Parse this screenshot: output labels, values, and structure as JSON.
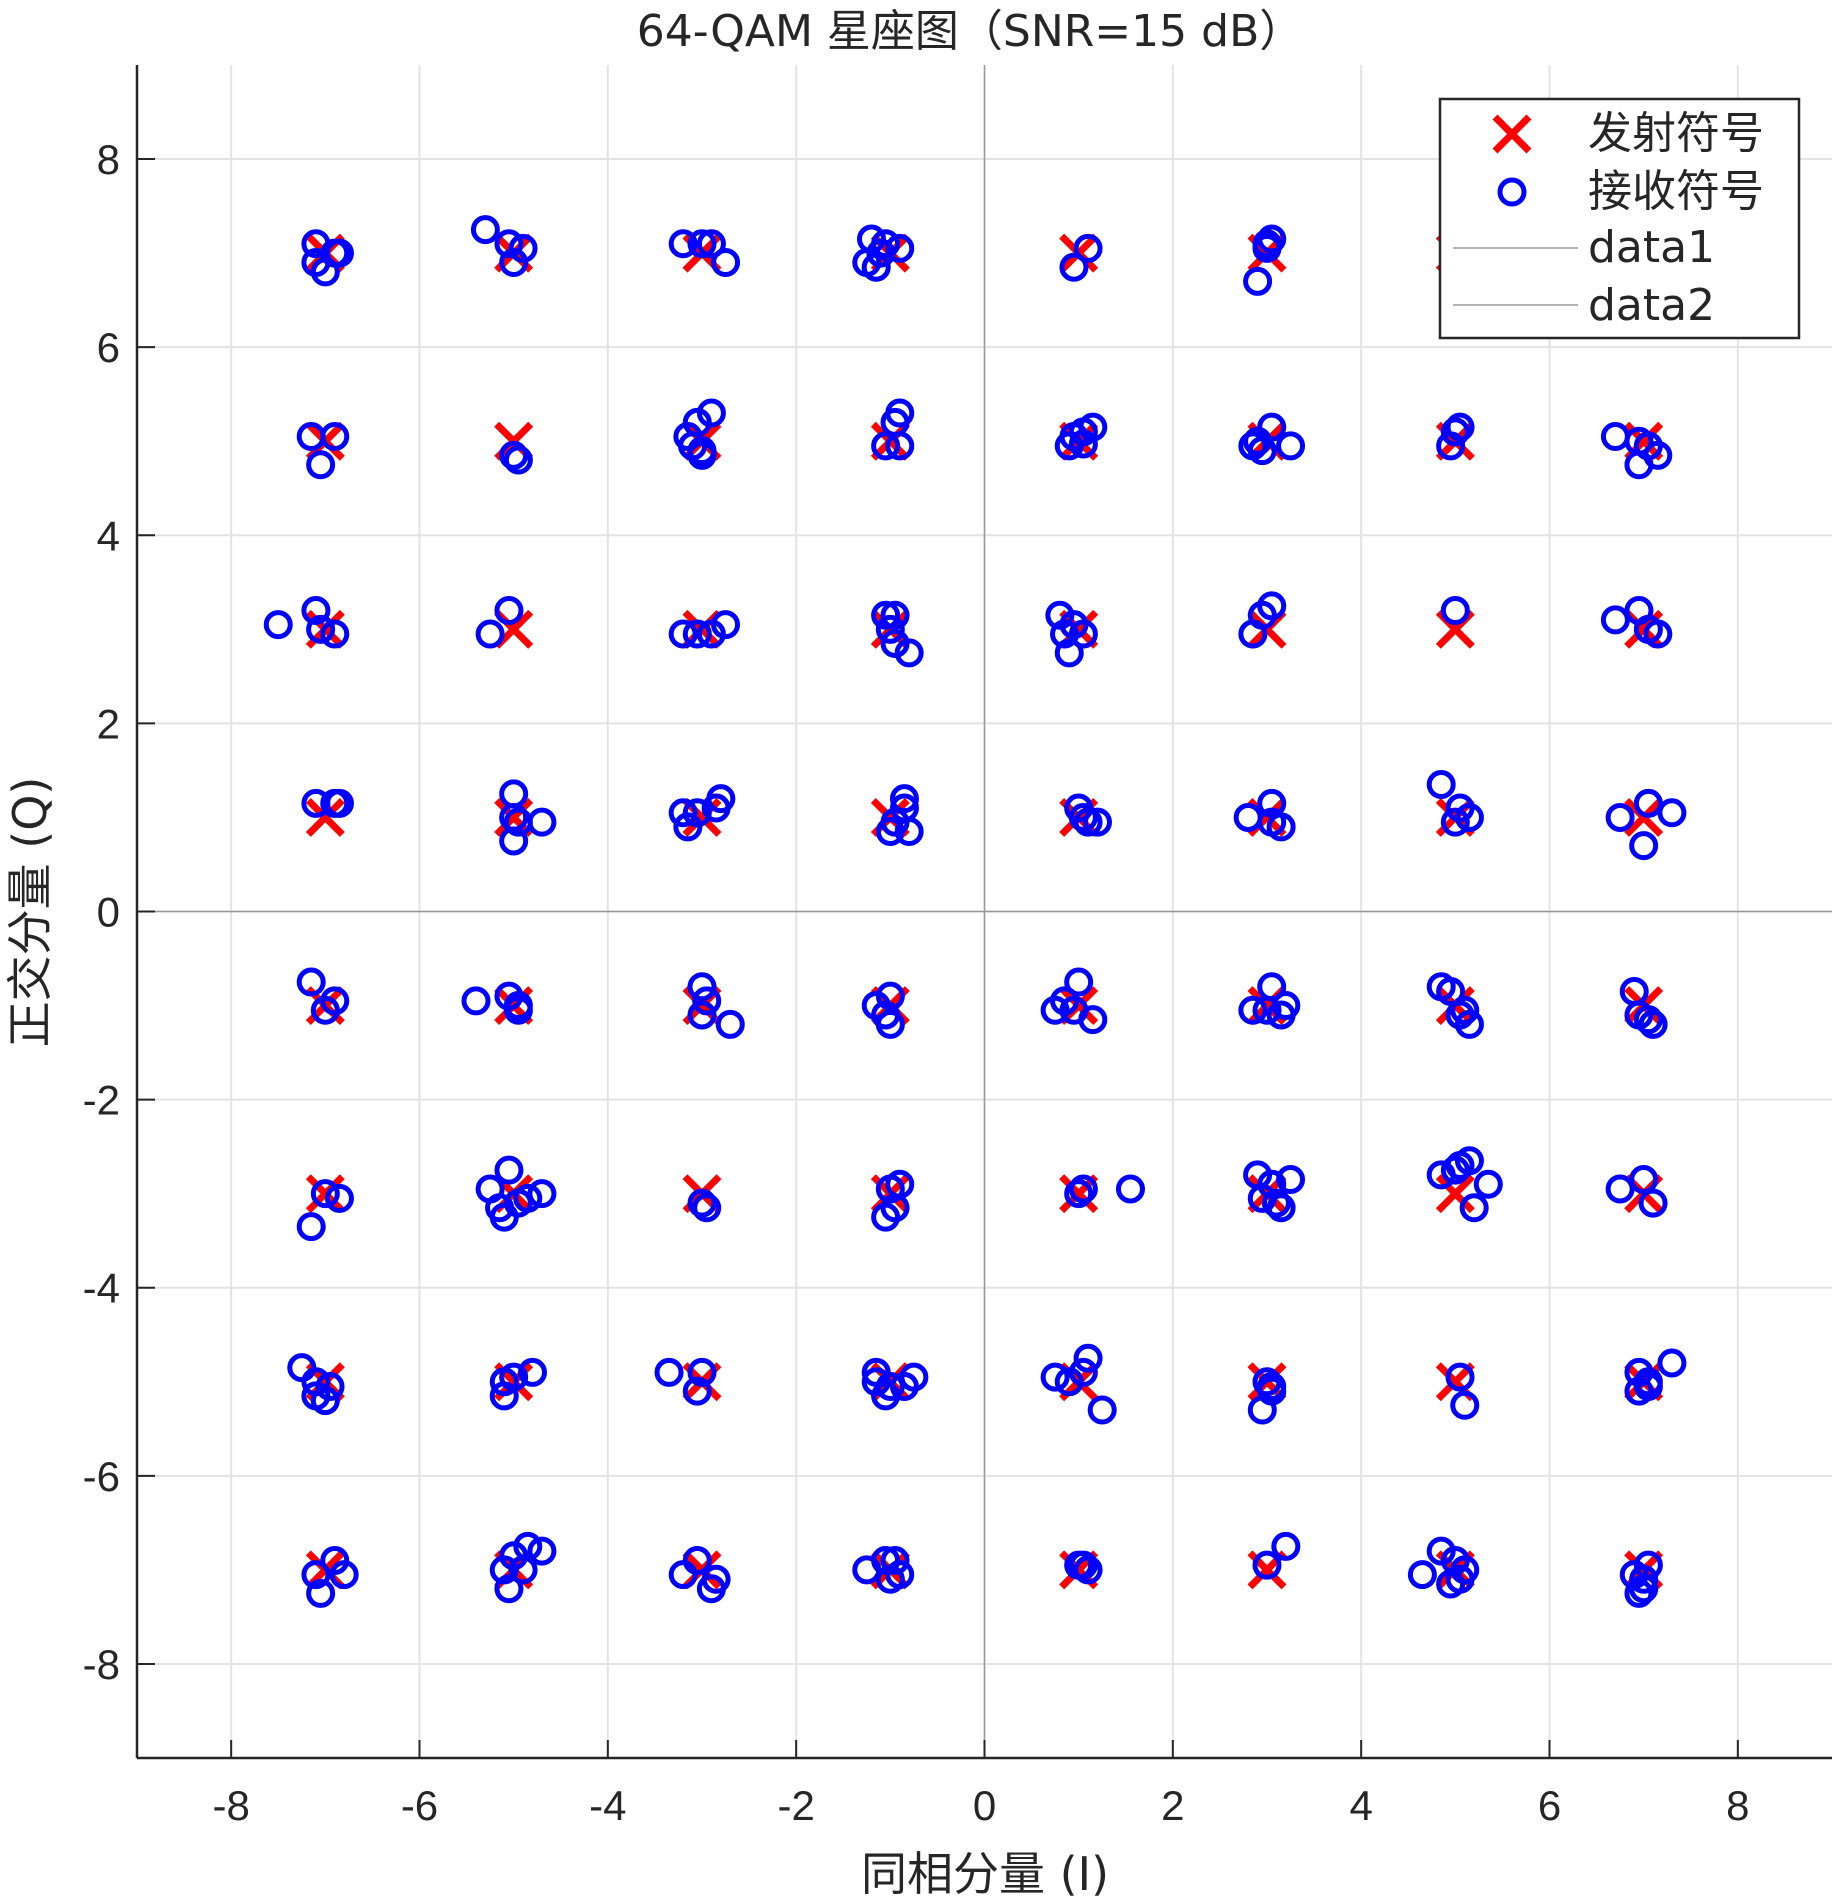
{
  "chart_data": {
    "type": "scatter",
    "title": "64-QAM 星座图（SNR=15 dB）",
    "xlabel": "同相分量 (I)",
    "ylabel": "正交分量 (Q)",
    "xlim": [
      -9,
      9
    ],
    "ylim": [
      -9,
      9
    ],
    "xticks": [
      -8,
      -6,
      -4,
      -2,
      0,
      2,
      4,
      6,
      8
    ],
    "yticks": [
      -8,
      -6,
      -4,
      -2,
      0,
      2,
      4,
      6,
      8
    ],
    "grid": true,
    "legend_position": "northeast",
    "legend": [
      {
        "label": "发射符号",
        "marker": "x",
        "color": "#ff0000"
      },
      {
        "label": "接收符号",
        "marker": "o",
        "color": "#0000ff"
      },
      {
        "label": "data1",
        "marker": "line",
        "color": "#b3b3b3"
      },
      {
        "label": "data2",
        "marker": "line",
        "color": "#b3b3b3"
      }
    ],
    "reference_lines": [
      {
        "name": "data1",
        "type": "horizontal",
        "value": 0,
        "color": "#999999"
      },
      {
        "name": "data2",
        "type": "vertical",
        "value": 0,
        "color": "#999999"
      }
    ],
    "series": [
      {
        "name": "发射符号",
        "marker": "x",
        "color": "#ff0000",
        "points": "64-QAM grid: I,Q ∈ {-7,-5,-3,-1,1,3,5,7}",
        "levels": [
          -7,
          -5,
          -3,
          -1,
          1,
          3,
          5,
          7
        ]
      },
      {
        "name": "接收符号",
        "marker": "o",
        "color": "#0000ff",
        "points": [
          [
            -7.1,
            7.1
          ],
          [
            -7.1,
            6.9
          ],
          [
            -6.9,
            7.0
          ],
          [
            -7.0,
            6.8
          ],
          [
            -6.85,
            7.0
          ],
          [
            -5.3,
            7.25
          ],
          [
            -5.05,
            7.1
          ],
          [
            -4.9,
            7.05
          ],
          [
            -5.0,
            6.9
          ],
          [
            -3.2,
            7.1
          ],
          [
            -3.0,
            7.1
          ],
          [
            -2.9,
            7.1
          ],
          [
            -2.75,
            6.9
          ],
          [
            -1.2,
            7.15
          ],
          [
            -1.1,
            7.0
          ],
          [
            -1.25,
            6.9
          ],
          [
            -1.05,
            7.1
          ],
          [
            -0.9,
            7.05
          ],
          [
            -1.15,
            6.85
          ],
          [
            1.1,
            7.05
          ],
          [
            0.95,
            6.85
          ],
          [
            3.0,
            7.1
          ],
          [
            3.05,
            7.15
          ],
          [
            3.0,
            7.05
          ],
          [
            2.9,
            6.7
          ],
          [
            -7.15,
            5.05
          ],
          [
            -6.9,
            5.05
          ],
          [
            -7.05,
            4.75
          ],
          [
            -5.0,
            4.85
          ],
          [
            -4.95,
            4.8
          ],
          [
            -3.15,
            5.05
          ],
          [
            -3.05,
            5.2
          ],
          [
            -2.9,
            5.3
          ],
          [
            -3.0,
            4.9
          ],
          [
            -3.1,
            4.95
          ],
          [
            -3.0,
            4.85
          ],
          [
            -0.9,
            5.3
          ],
          [
            -0.95,
            5.2
          ],
          [
            -1.05,
            4.95
          ],
          [
            -0.9,
            4.95
          ],
          [
            0.95,
            5.05
          ],
          [
            1.05,
            5.1
          ],
          [
            1.15,
            5.15
          ],
          [
            0.9,
            4.95
          ],
          [
            1.05,
            4.97
          ],
          [
            2.85,
            4.95
          ],
          [
            3.05,
            5.15
          ],
          [
            2.95,
            4.9
          ],
          [
            3.25,
            4.95
          ],
          [
            2.9,
            5.0
          ],
          [
            5.0,
            5.1
          ],
          [
            5.05,
            5.15
          ],
          [
            4.95,
            4.95
          ],
          [
            6.7,
            5.05
          ],
          [
            6.95,
            5.0
          ],
          [
            6.95,
            4.75
          ],
          [
            7.15,
            4.85
          ],
          [
            7.05,
            4.95
          ],
          [
            -7.5,
            3.05
          ],
          [
            -7.1,
            3.2
          ],
          [
            -7.05,
            3.0
          ],
          [
            -6.9,
            2.95
          ],
          [
            -5.25,
            2.95
          ],
          [
            -5.05,
            3.2
          ],
          [
            -3.2,
            2.95
          ],
          [
            -3.05,
            2.95
          ],
          [
            -2.9,
            2.95
          ],
          [
            -2.75,
            3.05
          ],
          [
            -1.05,
            3.15
          ],
          [
            -0.95,
            3.15
          ],
          [
            -1.0,
            3.0
          ],
          [
            -0.95,
            2.85
          ],
          [
            -0.8,
            2.75
          ],
          [
            0.8,
            3.15
          ],
          [
            0.95,
            3.05
          ],
          [
            0.85,
            2.95
          ],
          [
            1.05,
            2.95
          ],
          [
            0.9,
            2.75
          ],
          [
            2.85,
            2.95
          ],
          [
            3.05,
            3.25
          ],
          [
            2.95,
            3.15
          ],
          [
            5.0,
            3.2
          ],
          [
            6.7,
            3.1
          ],
          [
            6.95,
            3.2
          ],
          [
            7.05,
            3.0
          ],
          [
            7.15,
            2.95
          ],
          [
            -7.1,
            1.15
          ],
          [
            -6.85,
            1.15
          ],
          [
            -6.9,
            1.15
          ],
          [
            -5.0,
            1.25
          ],
          [
            -5.0,
            1.0
          ],
          [
            -4.95,
            0.95
          ],
          [
            -4.7,
            0.95
          ],
          [
            -5.0,
            0.75
          ],
          [
            -3.2,
            1.05
          ],
          [
            -3.05,
            1.05
          ],
          [
            -2.85,
            1.1
          ],
          [
            -2.8,
            1.2
          ],
          [
            -3.15,
            0.9
          ],
          [
            -0.85,
            1.2
          ],
          [
            -0.85,
            1.1
          ],
          [
            -0.95,
            0.95
          ],
          [
            -0.8,
            0.85
          ],
          [
            -1.0,
            0.85
          ],
          [
            1.0,
            1.1
          ],
          [
            1.05,
            1.0
          ],
          [
            1.1,
            0.95
          ],
          [
            1.2,
            0.95
          ],
          [
            2.8,
            1.0
          ],
          [
            3.05,
            1.15
          ],
          [
            3.05,
            0.95
          ],
          [
            3.15,
            0.9
          ],
          [
            4.85,
            1.35
          ],
          [
            5.05,
            1.1
          ],
          [
            5.0,
            0.95
          ],
          [
            5.15,
            1.0
          ],
          [
            6.75,
            1.0
          ],
          [
            7.05,
            1.15
          ],
          [
            7.3,
            1.05
          ],
          [
            7.0,
            0.7
          ],
          [
            -7.15,
            -0.75
          ],
          [
            -6.9,
            -0.95
          ],
          [
            -7.0,
            -1.05
          ],
          [
            -5.4,
            -0.95
          ],
          [
            -5.05,
            -0.9
          ],
          [
            -4.95,
            -1.0
          ],
          [
            -4.95,
            -1.05
          ],
          [
            -3.0,
            -0.8
          ],
          [
            -2.95,
            -0.95
          ],
          [
            -3.0,
            -1.1
          ],
          [
            -2.7,
            -1.2
          ],
          [
            -1.15,
            -1.0
          ],
          [
            -1.0,
            -0.9
          ],
          [
            -1.05,
            -1.1
          ],
          [
            -1.0,
            -1.2
          ],
          [
            0.75,
            -1.05
          ],
          [
            0.85,
            -0.95
          ],
          [
            1.0,
            -0.75
          ],
          [
            1.15,
            -1.15
          ],
          [
            0.95,
            -1.05
          ],
          [
            2.85,
            -1.05
          ],
          [
            3.05,
            -0.8
          ],
          [
            3.2,
            -1.0
          ],
          [
            3.0,
            -1.05
          ],
          [
            3.15,
            -1.1
          ],
          [
            4.85,
            -0.8
          ],
          [
            4.95,
            -0.85
          ],
          [
            5.1,
            -1.05
          ],
          [
            5.15,
            -1.2
          ],
          [
            5.05,
            -1.1
          ],
          [
            6.9,
            -0.85
          ],
          [
            7.05,
            -1.15
          ],
          [
            7.1,
            -1.2
          ],
          [
            6.95,
            -1.1
          ],
          [
            -7.15,
            -3.35
          ],
          [
            -7.0,
            -3.0
          ],
          [
            -6.85,
            -3.05
          ],
          [
            -5.25,
            -2.95
          ],
          [
            -5.05,
            -2.75
          ],
          [
            -5.15,
            -3.15
          ],
          [
            -4.95,
            -3.1
          ],
          [
            -4.7,
            -3.0
          ],
          [
            -5.1,
            -3.25
          ],
          [
            -4.85,
            -3.05
          ],
          [
            -2.95,
            -3.15
          ],
          [
            -3.0,
            -3.1
          ],
          [
            -1.0,
            -2.95
          ],
          [
            -0.9,
            -2.9
          ],
          [
            -0.95,
            -3.15
          ],
          [
            -1.05,
            -3.25
          ],
          [
            1.05,
            -2.95
          ],
          [
            1.0,
            -3.0
          ],
          [
            1.55,
            -2.95
          ],
          [
            2.9,
            -2.8
          ],
          [
            3.05,
            -2.9
          ],
          [
            3.15,
            -3.15
          ],
          [
            3.25,
            -2.85
          ],
          [
            2.95,
            -3.05
          ],
          [
            3.1,
            -3.1
          ],
          [
            4.85,
            -2.8
          ],
          [
            5.05,
            -2.7
          ],
          [
            5.15,
            -2.65
          ],
          [
            5.35,
            -2.9
          ],
          [
            5.2,
            -3.15
          ],
          [
            5.0,
            -2.75
          ],
          [
            6.75,
            -2.95
          ],
          [
            7.0,
            -2.85
          ],
          [
            7.1,
            -3.1
          ],
          [
            -7.25,
            -4.85
          ],
          [
            -7.1,
            -5.0
          ],
          [
            -6.95,
            -5.05
          ],
          [
            -7.0,
            -5.2
          ],
          [
            -7.1,
            -5.15
          ],
          [
            -5.1,
            -5.0
          ],
          [
            -5.0,
            -4.95
          ],
          [
            -4.8,
            -4.9
          ],
          [
            -5.1,
            -5.15
          ],
          [
            -3.35,
            -4.9
          ],
          [
            -3.0,
            -4.9
          ],
          [
            -3.05,
            -5.1
          ],
          [
            -1.15,
            -4.9
          ],
          [
            -1.15,
            -5.0
          ],
          [
            -1.0,
            -5.05
          ],
          [
            -0.75,
            -4.95
          ],
          [
            -0.85,
            -5.05
          ],
          [
            -1.05,
            -5.15
          ],
          [
            0.75,
            -4.95
          ],
          [
            0.9,
            -5.0
          ],
          [
            1.1,
            -4.75
          ],
          [
            1.05,
            -4.9
          ],
          [
            1.25,
            -5.3
          ],
          [
            3.0,
            -5.0
          ],
          [
            3.05,
            -5.1
          ],
          [
            2.95,
            -5.3
          ],
          [
            3.05,
            -5.05
          ],
          [
            5.05,
            -4.95
          ],
          [
            5.1,
            -5.25
          ],
          [
            6.95,
            -4.9
          ],
          [
            7.05,
            -5.0
          ],
          [
            7.3,
            -4.8
          ],
          [
            6.95,
            -5.1
          ],
          [
            7.05,
            -5.05
          ],
          [
            -7.05,
            -7.25
          ],
          [
            -6.9,
            -6.9
          ],
          [
            -6.8,
            -7.05
          ],
          [
            -7.1,
            -7.05
          ],
          [
            -5.1,
            -7.0
          ],
          [
            -5.0,
            -6.85
          ],
          [
            -4.85,
            -6.75
          ],
          [
            -4.7,
            -6.8
          ],
          [
            -4.9,
            -7.0
          ],
          [
            -5.05,
            -7.2
          ],
          [
            -3.2,
            -7.05
          ],
          [
            -3.05,
            -6.9
          ],
          [
            -2.85,
            -7.1
          ],
          [
            -2.9,
            -7.2
          ],
          [
            -1.25,
            -7.0
          ],
          [
            -1.05,
            -6.9
          ],
          [
            -0.95,
            -6.9
          ],
          [
            -0.9,
            -7.05
          ],
          [
            -1.0,
            -7.1
          ],
          [
            1.0,
            -6.95
          ],
          [
            1.05,
            -6.95
          ],
          [
            1.1,
            -7.0
          ],
          [
            3.0,
            -6.95
          ],
          [
            3.2,
            -6.75
          ],
          [
            4.65,
            -7.05
          ],
          [
            4.85,
            -6.8
          ],
          [
            5.0,
            -6.9
          ],
          [
            5.05,
            -7.1
          ],
          [
            4.95,
            -7.15
          ],
          [
            5.1,
            -7.0
          ],
          [
            6.9,
            -7.05
          ],
          [
            7.0,
            -7.2
          ],
          [
            7.05,
            -6.95
          ],
          [
            7.0,
            -7.1
          ],
          [
            6.95,
            -7.25
          ]
        ]
      }
    ]
  }
}
